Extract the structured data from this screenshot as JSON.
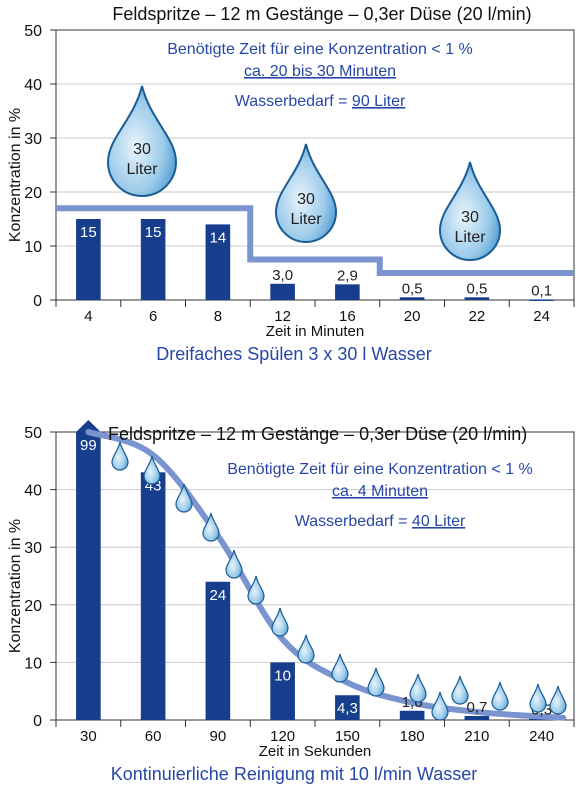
{
  "colors": {
    "bar": "#163e8c",
    "bar_label": "#ffffff",
    "bar_label_dark": "#222222",
    "step_line": "#7a94cf",
    "annotation": "#2747a8",
    "grid": "#c9c9c9",
    "axis": "#333333",
    "drop_fill_light": "#e8f4fb",
    "drop_fill_dark": "#2e86c6",
    "drop_stroke": "#1a5c94"
  },
  "chart_data": [
    {
      "type": "bar",
      "title": "Feldspritze – 12 m Gestänge – 0,3er Düse (20 l/min)",
      "subtitle": "Dreifaches Spülen 3 x 30 l Wasser",
      "xlabel": "Zeit in Minuten",
      "ylabel": "Konzentration in %",
      "ylim": [
        0,
        50
      ],
      "yticks": [
        "0",
        "10",
        "20",
        "30",
        "40",
        "50"
      ],
      "grid": true,
      "categories": [
        "4",
        "6",
        "8",
        "12",
        "16",
        "20",
        "22",
        "24"
      ],
      "values": [
        15,
        15,
        14,
        3.0,
        2.9,
        0.5,
        0.5,
        0.1
      ],
      "value_labels": [
        "15",
        "15",
        "14",
        "3,0",
        "2,9",
        "0,5",
        "0,5",
        "0,1"
      ],
      "line": {
        "type": "step",
        "levels": [
          {
            "from": "4",
            "to": "8",
            "value": 17
          },
          {
            "from": "12",
            "to": "16",
            "value": 7.5
          },
          {
            "from": "20",
            "to": "24",
            "value": 5
          }
        ]
      },
      "annotations": {
        "line1": "Benötigte Zeit für eine Konzentration < 1 %",
        "line2": "ca. 20 bis 30 Minuten",
        "line3_prefix": "Wasserbedarf = ",
        "line3_value": "90 Liter"
      },
      "drops": [
        {
          "number": "30",
          "unit": "Liter"
        },
        {
          "number": "30",
          "unit": "Liter"
        },
        {
          "number": "30",
          "unit": "Liter"
        }
      ]
    },
    {
      "type": "bar",
      "title": "Feldspritze – 12 m Gestänge – 0,3er Düse (20 l/min)",
      "subtitle": "Kontinuierliche Reinigung mit 10 l/min Wasser",
      "xlabel": "Zeit in Sekunden",
      "ylabel": "Konzentration in %",
      "ylim": [
        0,
        50
      ],
      "yticks": [
        "0",
        "10",
        "20",
        "30",
        "40",
        "50"
      ],
      "grid": true,
      "categories": [
        "30",
        "60",
        "90",
        "120",
        "150",
        "180",
        "210",
        "240"
      ],
      "values": [
        99,
        43,
        24,
        10,
        4.3,
        1.6,
        0.7,
        0.3
      ],
      "value_labels": [
        "99",
        "43",
        "24",
        "10",
        "4,3",
        "1,6",
        "0,7",
        "0,3"
      ],
      "line": {
        "type": "curve",
        "x": [
          30,
          60,
          90,
          120,
          150,
          180,
          210,
          240,
          250
        ],
        "y": [
          50,
          46,
          32,
          14,
          6.5,
          3,
          1.4,
          0.6,
          0.4
        ]
      },
      "annotations": {
        "line1": "Benötigte Zeit für eine Konzentration < 1 %",
        "line2": "ca. 4 Minuten",
        "line3_prefix": "Wasserbedarf = ",
        "line3_value": "40 Liter"
      },
      "small_drops": 16
    }
  ]
}
